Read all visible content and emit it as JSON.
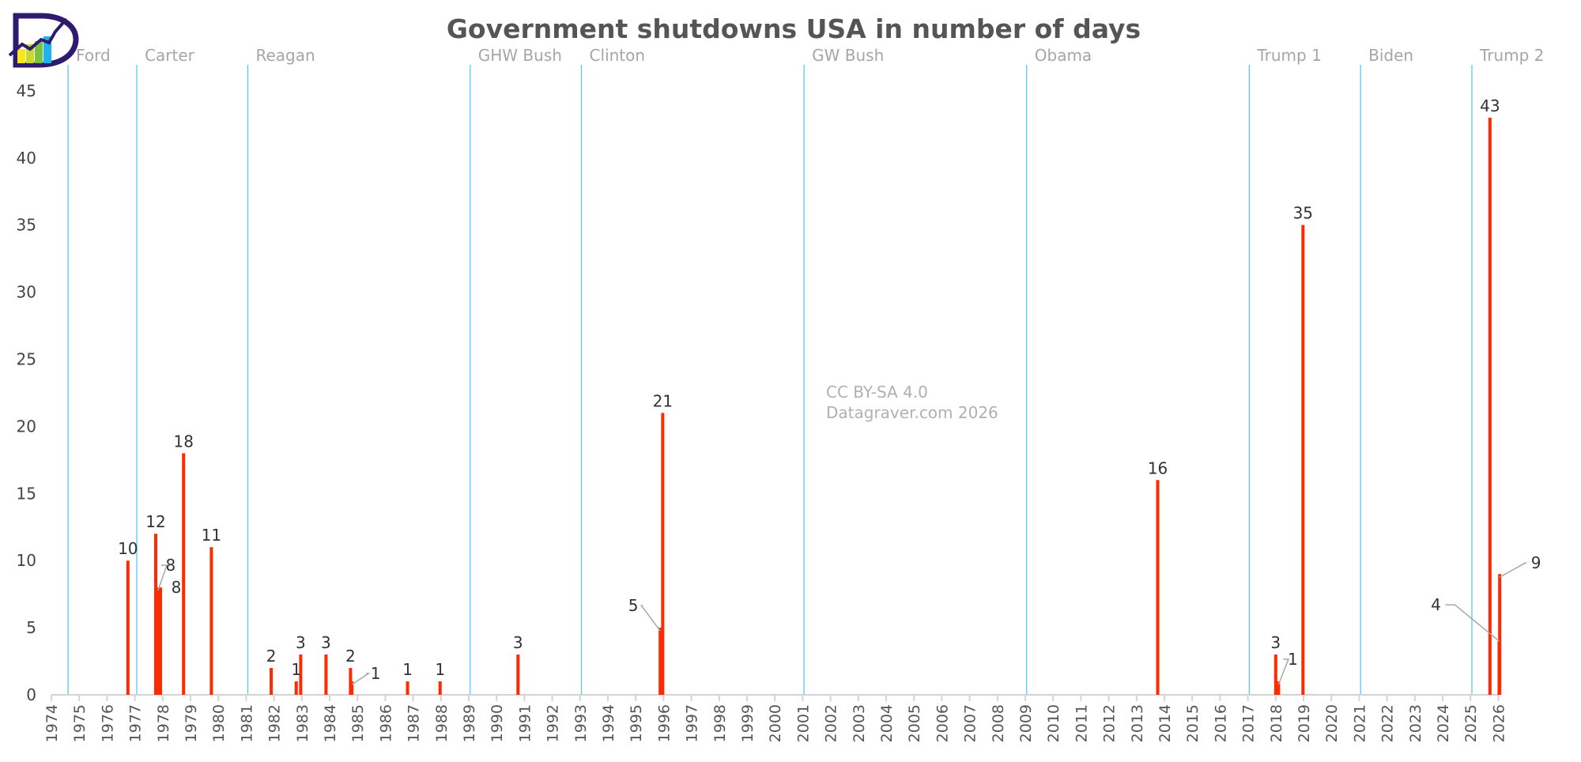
{
  "chart_data": {
    "type": "bar",
    "title": "Government shutdowns USA in number of days",
    "xlabel": "",
    "ylabel": "",
    "xlim": [
      1974,
      2026
    ],
    "ylim": [
      0,
      47
    ],
    "y_ticks": [
      0,
      5,
      10,
      15,
      20,
      25,
      30,
      35,
      40,
      45
    ],
    "x_ticks": [
      1974,
      1975,
      1976,
      1977,
      1978,
      1979,
      1980,
      1981,
      1982,
      1983,
      1984,
      1985,
      1986,
      1987,
      1988,
      1989,
      1990,
      1991,
      1992,
      1993,
      1994,
      1995,
      1996,
      1997,
      1998,
      1999,
      2000,
      2001,
      2002,
      2003,
      2004,
      2005,
      2006,
      2007,
      2008,
      2009,
      2010,
      2011,
      2012,
      2013,
      2014,
      2015,
      2016,
      2017,
      2018,
      2019,
      2020,
      2021,
      2022,
      2023,
      2024,
      2025,
      2026
    ],
    "grid": false,
    "bar_color": "#ff2a00",
    "presidency_line_color": "#5bc8f0",
    "presidencies": [
      {
        "name": "Ford",
        "start": 1974.6
      },
      {
        "name": "Carter",
        "start": 1977.07
      },
      {
        "name": "Reagan",
        "start": 1981.06
      },
      {
        "name": "GHW Bush",
        "start": 1989.05
      },
      {
        "name": "Clinton",
        "start": 1993.05
      },
      {
        "name": "GW Bush",
        "start": 2001.05
      },
      {
        "name": "Obama",
        "start": 2009.05
      },
      {
        "name": "Trump 1",
        "start": 2017.05
      },
      {
        "name": "Biden",
        "start": 2021.05
      },
      {
        "name": "Trump 2",
        "start": 2025.05
      }
    ],
    "series": [
      {
        "name": "Shutdown days",
        "x": [
          1976.75,
          1977.75,
          1977.83,
          1977.92,
          1978.75,
          1979.75,
          1981.9,
          1982.8,
          1982.96,
          1983.87,
          1984.75,
          1984.8,
          1986.8,
          1987.97,
          1990.77,
          1995.88,
          1995.97,
          2013.76,
          2018.0,
          2018.1,
          2018.98,
          2025.7,
          2026.03,
          2026.05
        ],
        "values": [
          10,
          12,
          8,
          8,
          18,
          11,
          2,
          1,
          3,
          3,
          2,
          1,
          1,
          1,
          3,
          5,
          21,
          16,
          3,
          1,
          35,
          43,
          4,
          9
        ]
      }
    ],
    "annotations": [
      "CC BY-SA 4.0",
      "Datagraver.com 2026"
    ]
  }
}
